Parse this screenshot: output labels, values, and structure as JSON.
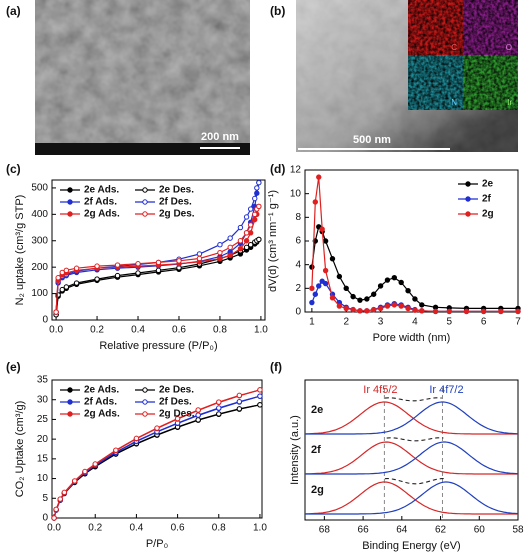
{
  "images": {
    "a": {
      "label": "(a)",
      "scale": "200 nm"
    },
    "b": {
      "label": "(b)",
      "scale": "500 nm",
      "maps": [
        "C",
        "O",
        "N",
        "Ir"
      ]
    }
  },
  "chart_data": [
    {
      "type": "line",
      "label": "(c)",
      "x_label": "Relative pressure (P/P₀)",
      "y_label": "N₂ uptake (cm³/g STP)",
      "xlim": [
        -0.02,
        1.02
      ],
      "xticks": [
        {
          "value": 0,
          "label": "0.0"
        },
        0.2,
        0.4,
        0.6,
        0.8,
        {
          "value": 1,
          "label": "1.0"
        }
      ],
      "ylim": [
        0,
        530
      ],
      "yticks": [
        0,
        100,
        200,
        300,
        400,
        500
      ],
      "legend": "upper left",
      "x": [
        0.0,
        0.01,
        0.03,
        0.05,
        0.1,
        0.2,
        0.3,
        0.4,
        0.5,
        0.6,
        0.7,
        0.8,
        0.85,
        0.9,
        0.93,
        0.95,
        0.97,
        0.98,
        0.99
      ],
      "series": [
        {
          "name": "2e Ads.",
          "color": "#000000",
          "marker": "filled",
          "values": [
            20,
            90,
            110,
            120,
            135,
            150,
            162,
            172,
            182,
            192,
            205,
            222,
            235,
            250,
            265,
            275,
            288,
            295,
            305
          ]
        },
        {
          "name": "2e Des.",
          "color": "#000000",
          "marker": "open",
          "values": [
            20,
            95,
            115,
            125,
            140,
            155,
            168,
            178,
            188,
            198,
            212,
            232,
            245,
            262,
            275,
            285,
            295,
            300,
            305
          ]
        },
        {
          "name": "2f Ads.",
          "color": "#1f2fd0",
          "marker": "filled",
          "values": [
            30,
            140,
            160,
            168,
            180,
            190,
            196,
            200,
            205,
            212,
            222,
            240,
            258,
            290,
            330,
            370,
            430,
            480,
            520
          ]
        },
        {
          "name": "2f Des.",
          "color": "#1f2fd0",
          "marker": "open",
          "values": [
            30,
            145,
            165,
            172,
            185,
            196,
            203,
            210,
            218,
            230,
            250,
            285,
            310,
            350,
            390,
            420,
            460,
            500,
            520
          ]
        },
        {
          "name": "2g Ads.",
          "color": "#e02020",
          "marker": "filled",
          "values": [
            30,
            150,
            170,
            178,
            188,
            196,
            200,
            204,
            208,
            213,
            220,
            232,
            245,
            270,
            300,
            330,
            380,
            400,
            430
          ]
        },
        {
          "name": "2g Des.",
          "color": "#e02020",
          "marker": "open",
          "values": [
            30,
            160,
            180,
            188,
            196,
            204,
            208,
            213,
            218,
            224,
            233,
            255,
            275,
            300,
            330,
            360,
            400,
            420,
            430
          ]
        }
      ]
    },
    {
      "type": "line",
      "label": "(d)",
      "x_label": "Pore width (nm)",
      "y_label": "dV(d) (cm³ nm⁻¹ g⁻¹)",
      "xlim": [
        0.8,
        7
      ],
      "xticks": [
        1,
        2,
        3,
        4,
        5,
        6,
        7
      ],
      "ylim": [
        0,
        12
      ],
      "yticks": [
        0,
        2,
        4,
        6,
        8,
        10,
        12
      ],
      "legend": "upper right",
      "x": [
        1.0,
        1.1,
        1.2,
        1.3,
        1.4,
        1.6,
        1.8,
        2.0,
        2.2,
        2.4,
        2.6,
        2.8,
        3.0,
        3.2,
        3.4,
        3.6,
        3.8,
        4.0,
        4.2,
        4.6,
        5.0,
        5.5,
        6.0,
        6.5,
        7.0
      ],
      "series": [
        {
          "name": "2e",
          "color": "#000000",
          "marker": "filled",
          "values": [
            3.8,
            6.0,
            7.2,
            6.8,
            6.0,
            4.5,
            3.0,
            2.0,
            1.3,
            1.0,
            1.1,
            1.5,
            2.2,
            2.7,
            2.9,
            2.5,
            1.8,
            1.1,
            0.6,
            0.4,
            0.35,
            0.3,
            0.3,
            0.3,
            0.3
          ]
        },
        {
          "name": "2f",
          "color": "#1f2fd0",
          "marker": "filled",
          "values": [
            0.8,
            1.5,
            2.2,
            2.6,
            2.4,
            1.5,
            0.8,
            0.4,
            0.2,
            0.1,
            0.1,
            0.2,
            0.4,
            0.6,
            0.7,
            0.6,
            0.4,
            0.2,
            0.1,
            0.05,
            0.05,
            0.05,
            0.05,
            0.05,
            0.05
          ]
        },
        {
          "name": "2g",
          "color": "#e02020",
          "marker": "filled",
          "values": [
            2.0,
            9.3,
            11.4,
            7.0,
            3.5,
            1.2,
            0.5,
            0.3,
            0.2,
            0.1,
            0.1,
            0.2,
            0.3,
            0.5,
            0.6,
            0.5,
            0.3,
            0.15,
            0.1,
            0.05,
            0.05,
            0.05,
            0.05,
            0.05,
            0.05
          ]
        }
      ]
    },
    {
      "type": "line",
      "label": "(e)",
      "x_label": "P/P₀",
      "y_label": "CO₂ Uptake (cm³/g)",
      "xlim": [
        -0.01,
        1.01
      ],
      "xticks": [
        {
          "value": 0,
          "label": "0.0"
        },
        0.2,
        0.4,
        0.6,
        0.8,
        {
          "value": 1,
          "label": "1.0"
        }
      ],
      "ylim": [
        0,
        35
      ],
      "yticks": [
        0,
        5,
        10,
        15,
        20,
        25,
        30,
        35
      ],
      "legend": "upper left",
      "x": [
        0,
        0.01,
        0.03,
        0.05,
        0.1,
        0.15,
        0.2,
        0.3,
        0.4,
        0.5,
        0.6,
        0.7,
        0.8,
        0.9,
        1.0
      ],
      "series": [
        {
          "name": "2e Ads.",
          "color": "#000000",
          "marker": "filled",
          "values": [
            0,
            2,
            4.5,
            6.2,
            9,
            11.2,
            13,
            16.2,
            18.8,
            21,
            23,
            24.8,
            26.3,
            27.6,
            28.7
          ]
        },
        {
          "name": "2e Des.",
          "color": "#000000",
          "marker": "open",
          "values": [
            0,
            2.1,
            4.6,
            6.3,
            9.1,
            11.3,
            13.1,
            16.3,
            18.9,
            21.1,
            23.1,
            24.9,
            26.4,
            27.7,
            28.7
          ]
        },
        {
          "name": "2f Ads.",
          "color": "#1f2fd0",
          "marker": "filled",
          "values": [
            0,
            2,
            4.6,
            6.3,
            9.2,
            11.5,
            13.3,
            16.6,
            19.4,
            21.8,
            24,
            26,
            27.8,
            29.4,
            30.9
          ]
        },
        {
          "name": "2f Des.",
          "color": "#1f2fd0",
          "marker": "open",
          "values": [
            0,
            2.1,
            4.7,
            6.4,
            9.3,
            11.6,
            13.4,
            16.7,
            19.5,
            21.9,
            24.1,
            26.1,
            27.9,
            29.5,
            30.9
          ]
        },
        {
          "name": "2g Ads.",
          "color": "#e02020",
          "marker": "filled",
          "values": [
            0,
            2.1,
            4.7,
            6.4,
            9.3,
            11.7,
            13.6,
            17.1,
            20.1,
            22.7,
            25.1,
            27.3,
            29.3,
            31,
            32.5
          ]
        },
        {
          "name": "2g Des.",
          "color": "#e02020",
          "marker": "open",
          "values": [
            0,
            2.2,
            4.8,
            6.5,
            9.4,
            11.8,
            13.7,
            17.2,
            20.2,
            22.8,
            25.2,
            27.4,
            29.4,
            31.1,
            32.5
          ]
        }
      ]
    },
    {
      "type": "spectrum",
      "label": "(f)",
      "x_label": "Binding Energy (eV)",
      "y_label": "Intensity (a.u.)",
      "xlim": [
        69,
        58
      ],
      "xticks": [
        68,
        66,
        64,
        62,
        60,
        58
      ],
      "reference_lines": [
        64.9,
        61.9
      ],
      "peak_labels": [
        "Ir 4f5/2",
        "Ir 4f7/2"
      ],
      "peak_colors": [
        "#d62728",
        "#1f3fbf"
      ],
      "samples": [
        {
          "name": "2e",
          "peaks": [
            64.9,
            61.9
          ]
        },
        {
          "name": "2f",
          "peaks": [
            64.8,
            61.8
          ]
        },
        {
          "name": "2g",
          "peaks": [
            64.9,
            61.7
          ]
        }
      ]
    }
  ]
}
